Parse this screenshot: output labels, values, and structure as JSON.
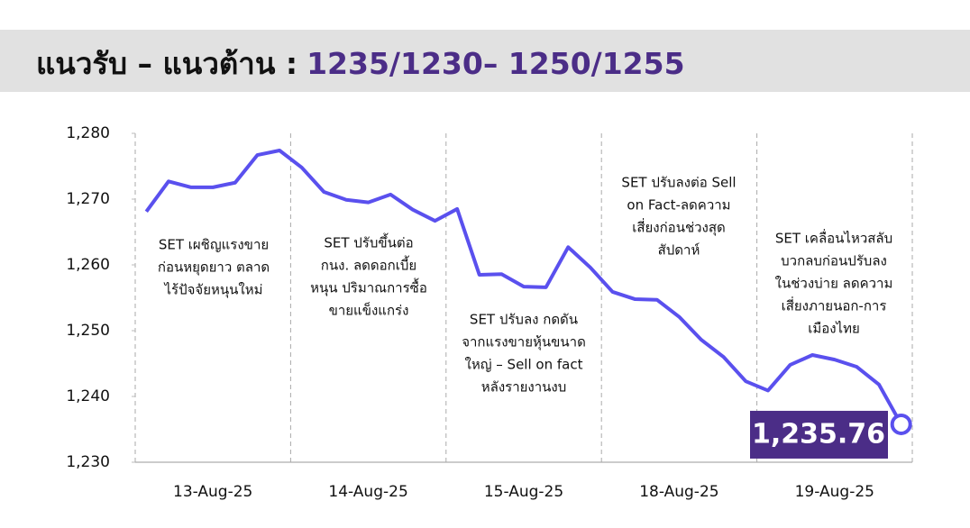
{
  "header": {
    "label": "แนวรับ – แนวต้าน :",
    "levels": "1235/1230– 1250/1255"
  },
  "chart_data": {
    "type": "line",
    "categories": [
      null,
      null,
      null,
      "13-Aug-25",
      null,
      null,
      null,
      null,
      null,
      null,
      "14-Aug-25",
      null,
      null,
      null,
      null,
      null,
      null,
      "15-Aug-25",
      null,
      null,
      null,
      null,
      null,
      null,
      "18-Aug-25",
      null,
      null,
      null,
      null,
      null,
      null,
      "19-Aug-25",
      null,
      null,
      null
    ],
    "values": [
      1268.1,
      1272.7,
      1271.8,
      1271.8,
      1272.5,
      1276.7,
      1277.4,
      1274.8,
      1271.1,
      1269.9,
      1269.5,
      1270.7,
      1268.4,
      1266.7,
      1268.5,
      1258.5,
      1258.6,
      1256.7,
      1256.6,
      1262.7,
      1259.6,
      1255.9,
      1254.8,
      1254.7,
      1252.1,
      1248.6,
      1246.0,
      1242.3,
      1240.9,
      1244.8,
      1246.3,
      1245.6,
      1244.5,
      1241.8,
      1235.76
    ],
    "value_labels": [
      null,
      null,
      null,
      null,
      null,
      null,
      null,
      null,
      null,
      null,
      null,
      null,
      null,
      null,
      null,
      null,
      null,
      null,
      null,
      null,
      null,
      null,
      null,
      null,
      null,
      null,
      null,
      null,
      null,
      null,
      null,
      null,
      null,
      null,
      "1,235.76"
    ],
    "color": "#5a50ee",
    "ylim": [
      1230,
      1280
    ],
    "yticks": [
      {
        "value": 1230,
        "label": "1,230"
      },
      {
        "value": 1240,
        "label": "1,240"
      },
      {
        "value": 1250,
        "label": "1,250"
      },
      {
        "value": 1260,
        "label": "1,260"
      },
      {
        "value": 1270,
        "label": "1,270"
      },
      {
        "value": 1280,
        "label": "1,280"
      }
    ],
    "grid": false,
    "annotations": [
      [
        "SET เผชิญแรงขาย",
        "ก่อนหยุดยาว ตลาด",
        "ไร้ปัจจัยหนุนใหม่"
      ],
      [
        "SET ปรับขึ้นต่อ",
        "กนง. ลดดอกเบี้ย",
        "หนุน ปริมาณการซื้อ",
        "ขายแข็งแกร่ง"
      ],
      [
        "SET ปรับลง กดดัน",
        "จากแรงขายหุ้นขนาด",
        "ใหญ่ – Sell on fact",
        "หลังรายงานงบ"
      ],
      [
        "SET ปรับลงต่อ Sell",
        "on Fact-ลดความ",
        "เสี่ยงก่อนช่วงสุด",
        "สัปดาห์"
      ],
      [
        "SET เคลื่อนไหวสลับ",
        "บวกลบก่อนปรับลง",
        "ในช่วงบ่าย ลดความ",
        "เสี่ยงภายนอก-การ",
        "เมืองไทย"
      ]
    ]
  }
}
